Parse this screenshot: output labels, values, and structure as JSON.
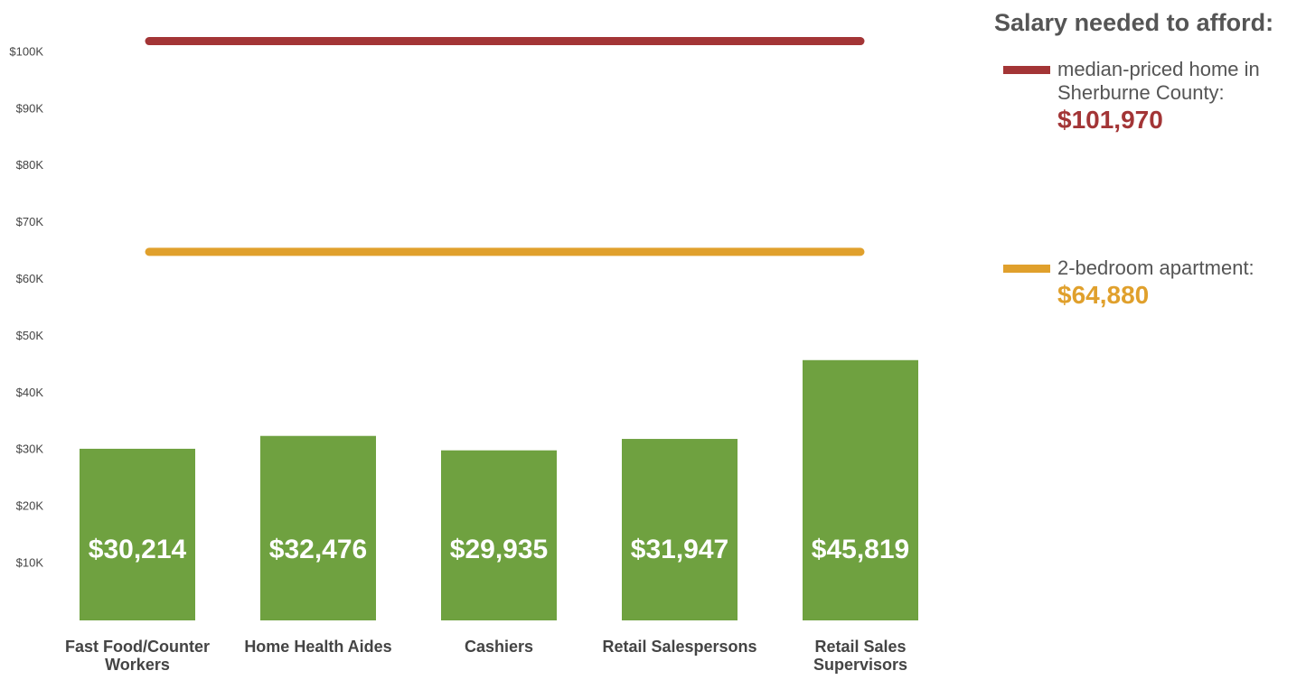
{
  "chart_data": {
    "type": "bar",
    "categories": [
      "Fast Food/Counter Workers",
      "Home Health Aides",
      "Cashiers",
      "Retail Salespersons",
      "Retail Sales Supervisors"
    ],
    "values": [
      30214,
      32476,
      29935,
      31947,
      45819
    ],
    "value_labels": [
      "$30,214",
      "$32,476",
      "$29,935",
      "$31,947",
      "$45,819"
    ],
    "color": "#6fa140",
    "ylim": [
      0,
      105000
    ],
    "yticks": [
      {
        "value": 10000,
        "label": "$10K"
      },
      {
        "value": 20000,
        "label": "$20K"
      },
      {
        "value": 30000,
        "label": "$30K"
      },
      {
        "value": 40000,
        "label": "$40K"
      },
      {
        "value": 50000,
        "label": "$50K"
      },
      {
        "value": 60000,
        "label": "$60K"
      },
      {
        "value": 70000,
        "label": "$70K"
      },
      {
        "value": 80000,
        "label": "$80K"
      },
      {
        "value": 90000,
        "label": "$90K"
      },
      {
        "value": 100000,
        "label": "$100K"
      }
    ],
    "grid": false,
    "legend_title": "Salary needed to afford:",
    "reference_lines": [
      {
        "name": "median-priced home in Sherburne County:",
        "value": 101970,
        "value_label": "$101,970",
        "color": "#a33536"
      },
      {
        "name": "2-bedroom apartment:",
        "value": 64880,
        "value_label": "$64,880",
        "color": "#e0a02c"
      }
    ]
  }
}
